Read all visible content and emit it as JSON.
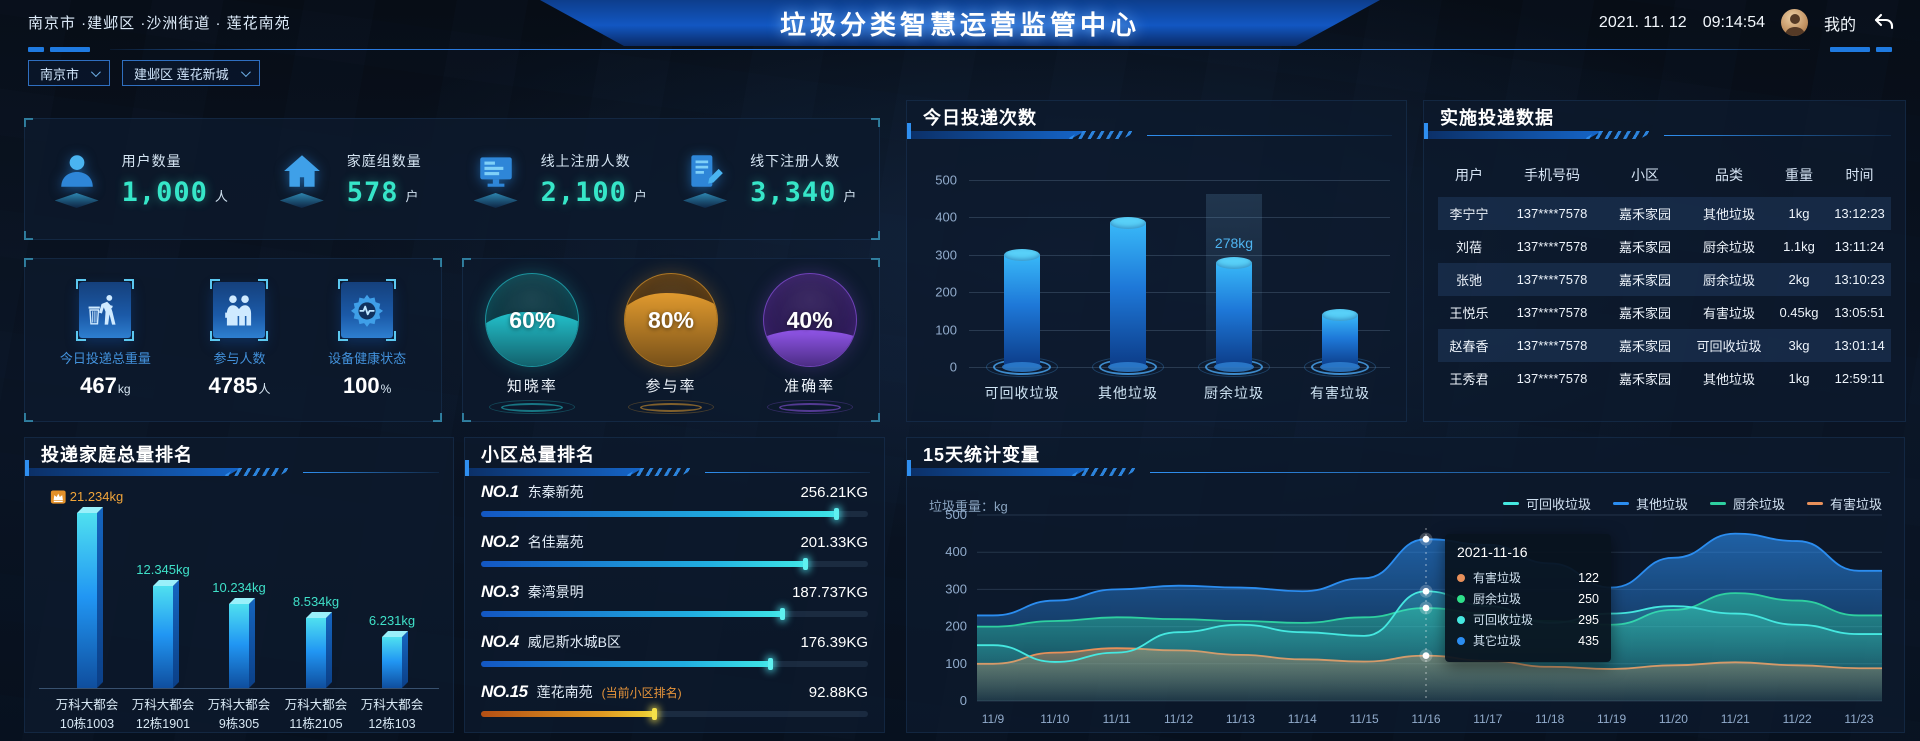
{
  "header": {
    "breadcrumb": "南京市 ·建邺区 ·沙洲街道 · 莲花南苑",
    "title": "垃圾分类智慧运营监管中心",
    "date": "2021. 11. 12",
    "time": "09:14:54",
    "profile": "我的"
  },
  "filters": {
    "city": "南京市",
    "community": "建邺区 莲花新城"
  },
  "stats": {
    "items": [
      {
        "icon": "user-icon",
        "label": "用户数量",
        "value": "1,000",
        "unit": "人"
      },
      {
        "icon": "home-icon",
        "label": "家庭组数量",
        "value": "578",
        "unit": "户"
      },
      {
        "icon": "online-register-icon",
        "label": "线上注册人数",
        "value": "2,100",
        "unit": "户"
      },
      {
        "icon": "offline-register-icon",
        "label": "线下注册人数",
        "value": "3,340",
        "unit": "户"
      }
    ]
  },
  "today": {
    "items": [
      {
        "icon": "trash-disposal-icon",
        "label": "今日投递总重量",
        "value": "467",
        "unit": "kg"
      },
      {
        "icon": "participants-icon",
        "label": "参与人数",
        "value": "4785",
        "unit": "人"
      },
      {
        "icon": "device-health-icon",
        "label": "设备健康状态",
        "value": "100",
        "unit": "%"
      }
    ]
  },
  "rates": {
    "items": [
      {
        "value": "60%",
        "pct": 60,
        "label": "知晓率",
        "color": "#23c2cc",
        "color_dark": "#0b3642"
      },
      {
        "value": "80%",
        "pct": 80,
        "label": "参与率",
        "color": "#e09a2e",
        "color_dark": "#4a3010"
      },
      {
        "value": "40%",
        "pct": 40,
        "label": "准确率",
        "color": "#9055e8",
        "color_dark": "#2c1a56"
      }
    ]
  },
  "delivery_table": {
    "title": "实施投递数据",
    "headers": [
      "用户",
      "手机号码",
      "小区",
      "品类",
      "重量",
      "时间"
    ],
    "rows": [
      [
        "李宁宁",
        "137****7578",
        "嘉禾家园",
        "其他垃圾",
        "1kg",
        "13:12:23"
      ],
      [
        "刘蓓",
        "137****7578",
        "嘉禾家园",
        "厨余垃圾",
        "1.1kg",
        "13:11:24"
      ],
      [
        "张弛",
        "137****7578",
        "嘉禾家园",
        "厨余垃圾",
        "2kg",
        "13:10:23"
      ],
      [
        "王悦乐",
        "137****7578",
        "嘉禾家园",
        "有害垃圾",
        "0.45kg",
        "13:05:51"
      ],
      [
        "赵春香",
        "137****7578",
        "嘉禾家园",
        "可回收垃圾",
        "3kg",
        "13:01:14"
      ],
      [
        "王秀君",
        "137****7578",
        "嘉禾家园",
        "其他垃圾",
        "1kg",
        "12:59:11"
      ]
    ]
  },
  "chart_data": [
    {
      "id": "today_delivery_count",
      "type": "bar",
      "title": "今日投递次数",
      "categories": [
        "可回收垃圾",
        "其他垃圾",
        "厨余垃圾",
        "有害垃圾"
      ],
      "values": [
        300,
        385,
        278,
        140
      ],
      "ylim": [
        0,
        500
      ],
      "yticks": [
        0,
        100,
        200,
        300,
        400,
        500
      ],
      "annotation": {
        "category_index": 2,
        "label": "278kg"
      }
    },
    {
      "id": "family_ranking",
      "type": "bar",
      "title": "投递家庭总量排名",
      "categories": [
        [
          "万科大都会",
          "10栋1003"
        ],
        [
          "万科大都会",
          "12栋1901"
        ],
        [
          "万科大都会",
          "9栋305"
        ],
        [
          "万科大都会",
          "11栋2105"
        ],
        [
          "万科大都会",
          "12栋103"
        ]
      ],
      "values": [
        21.234,
        12.345,
        10.234,
        8.534,
        6.231
      ],
      "value_labels": [
        "21.234kg",
        "12.345kg",
        "10.234kg",
        "8.534kg",
        "6.231kg"
      ],
      "top_icon": "crown-icon"
    },
    {
      "id": "community_ranking",
      "type": "bar",
      "orientation": "horizontal",
      "title": "小区总量排名",
      "rows": [
        {
          "rank": "NO.1",
          "name": "东秦新苑",
          "note": "",
          "value": "256.21KG",
          "pct": 92,
          "highlight": false
        },
        {
          "rank": "NO.2",
          "name": "名佳嘉苑",
          "note": "",
          "value": "201.33KG",
          "pct": 84,
          "highlight": false
        },
        {
          "rank": "NO.3",
          "name": "秦湾景明",
          "note": "",
          "value": "187.737KG",
          "pct": 78,
          "highlight": false
        },
        {
          "rank": "NO.4",
          "name": "威尼斯水城B区",
          "note": "",
          "value": "176.39KG",
          "pct": 75,
          "highlight": false
        },
        {
          "rank": "NO.15",
          "name": "莲花南苑",
          "note": "(当前小区排名)",
          "value": "92.88KG",
          "pct": 45,
          "highlight": true
        }
      ]
    },
    {
      "id": "trend_15d",
      "type": "area",
      "title": "15天统计变量",
      "ylabel": "垃圾重量：kg",
      "ylim": [
        0,
        500
      ],
      "yticks": [
        0,
        100,
        200,
        300,
        400,
        500
      ],
      "legend_position": "top-right",
      "grid": true,
      "x": [
        "11/9",
        "11/10",
        "11/11",
        "11/12",
        "11/13",
        "11/14",
        "11/15",
        "11/16",
        "11/17",
        "11/18",
        "11/19",
        "11/20",
        "11/21",
        "11/22",
        "11/23"
      ],
      "series": [
        {
          "name": "可回收垃圾",
          "color": "#45e8e0",
          "values": [
            150,
            105,
            130,
            185,
            205,
            185,
            175,
            295,
            255,
            210,
            235,
            255,
            235,
            205,
            180
          ]
        },
        {
          "name": "其他垃圾",
          "color": "#2b8df0",
          "values": [
            230,
            270,
            300,
            310,
            305,
            295,
            330,
            435,
            420,
            370,
            305,
            385,
            450,
            430,
            350
          ]
        },
        {
          "name": "厨余垃圾",
          "color": "#2ed0a0",
          "values": [
            200,
            215,
            225,
            220,
            215,
            210,
            225,
            250,
            235,
            215,
            205,
            245,
            290,
            270,
            230
          ]
        },
        {
          "name": "有害垃圾",
          "color": "#e8905a",
          "values": [
            100,
            130,
            142,
            136,
            124,
            112,
            106,
            122,
            108,
            92,
            86,
            96,
            104,
            96,
            88
          ]
        }
      ],
      "tooltip": {
        "date": "2021-11-16",
        "x_index": 7,
        "items": [
          {
            "name": "有害垃圾",
            "value": 122,
            "color": "#e8905a"
          },
          {
            "name": "厨余垃圾",
            "value": 250,
            "color": "#2ee08a"
          },
          {
            "name": "可回收垃圾",
            "value": 295,
            "color": "#45e8e0"
          },
          {
            "name": "其它垃圾",
            "value": 435,
            "color": "#2b8df0"
          }
        ]
      }
    }
  ]
}
